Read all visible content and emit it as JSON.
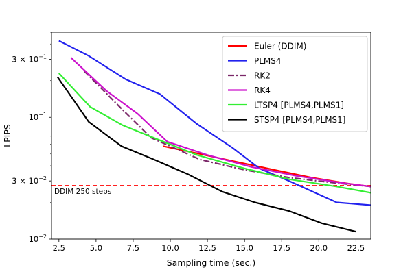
{
  "chart_data": {
    "type": "line",
    "xlabel": "Sampling time (sec.)",
    "ylabel": "LPIPS",
    "xlim": [
      2.0,
      23.5
    ],
    "ylim": [
      0.01,
      0.5
    ],
    "yscale": "log",
    "xticks": [
      2.5,
      5.0,
      7.5,
      10.0,
      12.5,
      15.0,
      17.5,
      20.0,
      22.5
    ],
    "xtick_labels": [
      "2.5",
      "5.0",
      "7.5",
      "10.0",
      "12.5",
      "15.0",
      "17.5",
      "20.0",
      "22.5"
    ],
    "yticks": [
      0.01,
      0.03,
      0.1,
      0.3
    ],
    "ytick_labels": [
      {
        "base": "10",
        "exp": "−2"
      },
      {
        "base": "3 × 10",
        "exp": "−2"
      },
      {
        "base": "10",
        "exp": "−1"
      },
      {
        "base": "3 × 10",
        "exp": "−1"
      }
    ],
    "legend_position": "top-right",
    "series": [
      {
        "name": "Euler (DDIM)",
        "color": "#ff0000",
        "dash": "solid",
        "x": [
          9.5,
          12.0,
          14.5,
          17.0,
          19.5,
          22.0,
          23.5
        ],
        "y": [
          0.058,
          0.05,
          0.043,
          0.037,
          0.032,
          0.0285,
          0.027
        ]
      },
      {
        "name": "PLMS4",
        "color": "#2222ee",
        "dash": "solid",
        "x": [
          2.5,
          4.5,
          7.0,
          9.3,
          11.8,
          14.2,
          16.0,
          18.0,
          21.2,
          23.5
        ],
        "y": [
          0.425,
          0.32,
          0.205,
          0.155,
          0.088,
          0.056,
          0.038,
          0.03,
          0.02,
          0.019
        ]
      },
      {
        "name": "RK2",
        "color": "#7b2869",
        "dash": "dashdot",
        "x": [
          4.2,
          6.5,
          8.7,
          12.0,
          15.0,
          18.0,
          21.0,
          23.5
        ],
        "y": [
          0.24,
          0.125,
          0.068,
          0.045,
          0.037,
          0.032,
          0.029,
          0.027
        ]
      },
      {
        "name": "RK4",
        "color": "#cc11cc",
        "dash": "solid",
        "x": [
          3.3,
          5.7,
          7.8,
          9.8,
          12.5,
          15.5,
          18.5,
          21.5,
          23.5
        ],
        "y": [
          0.31,
          0.165,
          0.107,
          0.063,
          0.049,
          0.039,
          0.033,
          0.029,
          0.027
        ]
      },
      {
        "name": "LTSP4 [PLMS4,PLMS1]",
        "color": "#33ee33",
        "dash": "solid",
        "x": [
          2.5,
          4.6,
          6.8,
          9.0,
          11.8,
          15.0,
          18.0,
          21.2,
          23.5
        ],
        "y": [
          0.23,
          0.122,
          0.086,
          0.067,
          0.049,
          0.038,
          0.031,
          0.027,
          0.024
        ]
      },
      {
        "name": "STSP4 [PLMS4,PLMS1]",
        "color": "#000000",
        "dash": "solid",
        "x": [
          2.4,
          4.5,
          6.7,
          8.9,
          11.2,
          13.5,
          15.7,
          18.0,
          20.2,
          22.5
        ],
        "y": [
          0.215,
          0.092,
          0.058,
          0.045,
          0.034,
          0.0245,
          0.02,
          0.017,
          0.0135,
          0.0115
        ]
      }
    ],
    "reference_line": {
      "y": 0.0275,
      "color": "#ff0000",
      "dash": "dashed",
      "label": "DDIM 250 steps"
    }
  }
}
